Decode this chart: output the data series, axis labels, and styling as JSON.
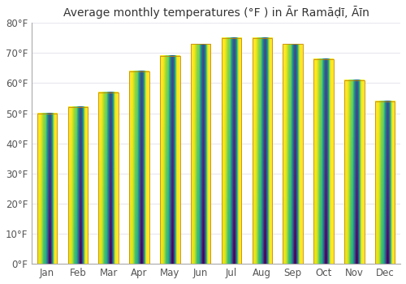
{
  "title": "Average monthly temperatures (°F ) in Ār Ramāḍī, Āīn",
  "months": [
    "Jan",
    "Feb",
    "Mar",
    "Apr",
    "May",
    "Jun",
    "Jul",
    "Aug",
    "Sep",
    "Oct",
    "Nov",
    "Dec"
  ],
  "values": [
    50,
    52,
    57,
    64,
    69,
    73,
    75,
    75,
    73,
    68,
    61,
    54
  ],
  "bar_color_light": "#FFD040",
  "bar_color_dark": "#F5A800",
  "bar_edge_color": "#C8880A",
  "background_color": "#ffffff",
  "plot_bg_color": "#ffffff",
  "ylim": [
    0,
    80
  ],
  "yticks": [
    0,
    10,
    20,
    30,
    40,
    50,
    60,
    70,
    80
  ],
  "grid_color": "#e8e8ee",
  "title_fontsize": 10,
  "tick_fontsize": 8.5
}
